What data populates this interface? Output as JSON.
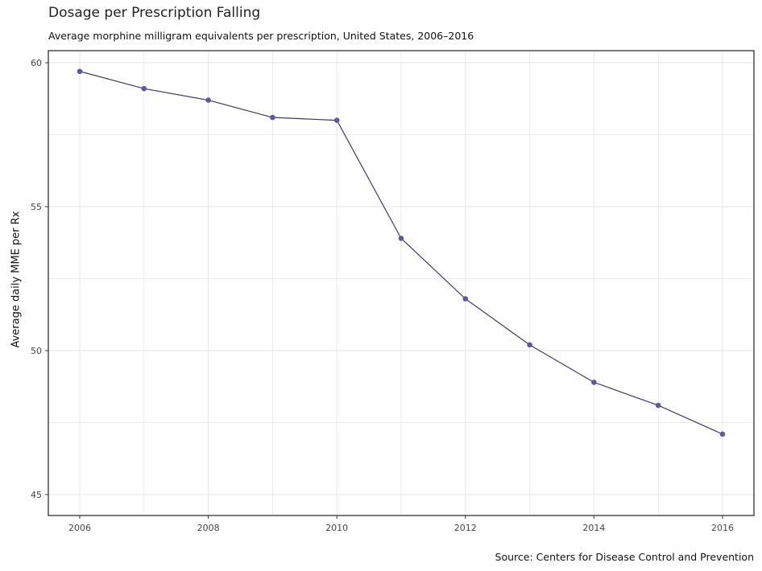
{
  "chart_data": {
    "type": "line",
    "title": "Dosage per Prescription Falling",
    "subtitle": "Average morphine milligram equivalents per prescription, United States, 2006–2016",
    "caption": "Source: Centers for Disease Control and Prevention",
    "xlabel": "",
    "ylabel": "Average daily MME per Rx",
    "x": [
      2006,
      2007,
      2008,
      2009,
      2010,
      2011,
      2012,
      2013,
      2014,
      2015,
      2016
    ],
    "values": [
      59.7,
      59.1,
      58.7,
      58.1,
      58.0,
      53.9,
      51.8,
      50.2,
      48.9,
      48.1,
      47.1
    ],
    "xticks": [
      "2006",
      "2008",
      "2010",
      "2012",
      "2014",
      "2016"
    ],
    "yticks": [
      "45",
      "50",
      "55",
      "60"
    ],
    "xlim": [
      2005.5,
      2016.5
    ],
    "ylim": [
      44.3,
      60.4
    ],
    "grid": true,
    "colors": {
      "line": "#3b3a6b",
      "point": "#5b5a9a",
      "grid": "#e6e6e6"
    }
  }
}
